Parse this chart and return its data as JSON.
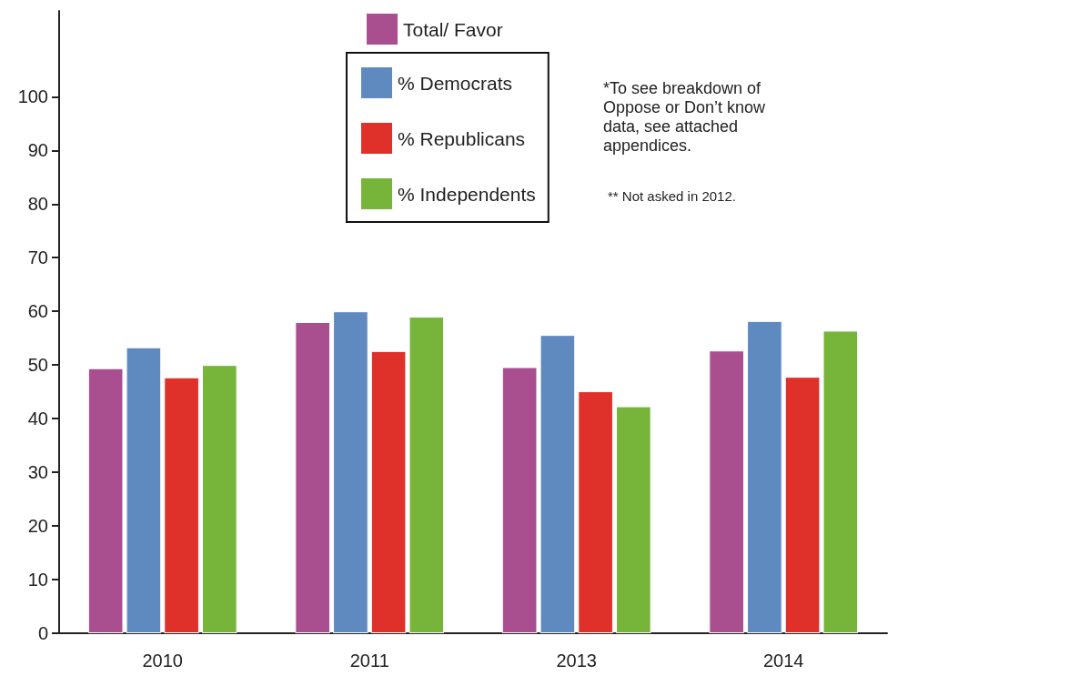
{
  "chart_data": {
    "type": "bar",
    "categories": [
      "2010",
      "2011",
      "2013",
      "2014"
    ],
    "series": [
      {
        "name": "Total/ Favor",
        "color": "#a94e8f",
        "values": [
          49.4,
          58.0,
          49.6,
          52.7
        ]
      },
      {
        "name": "% Democrats",
        "color": "#5f8abf",
        "values": [
          53.3,
          60.0,
          55.6,
          58.2
        ]
      },
      {
        "name": "% Republicans",
        "color": "#e0302a",
        "values": [
          47.7,
          52.6,
          45.1,
          47.8
        ]
      },
      {
        "name": "% Independents",
        "color": "#76b53a",
        "values": [
          50.0,
          59.0,
          42.3,
          56.4
        ]
      }
    ],
    "ylim": [
      0,
      116
    ],
    "yticks": [
      0,
      10,
      20,
      30,
      40,
      50,
      60,
      70,
      80,
      90,
      100
    ],
    "grid": false,
    "legend": "top",
    "annotations": [
      "*To see breakdown of\nOppose or Don’t know\ndata, see attached\nappendices.",
      "** Not asked in 2012."
    ]
  }
}
